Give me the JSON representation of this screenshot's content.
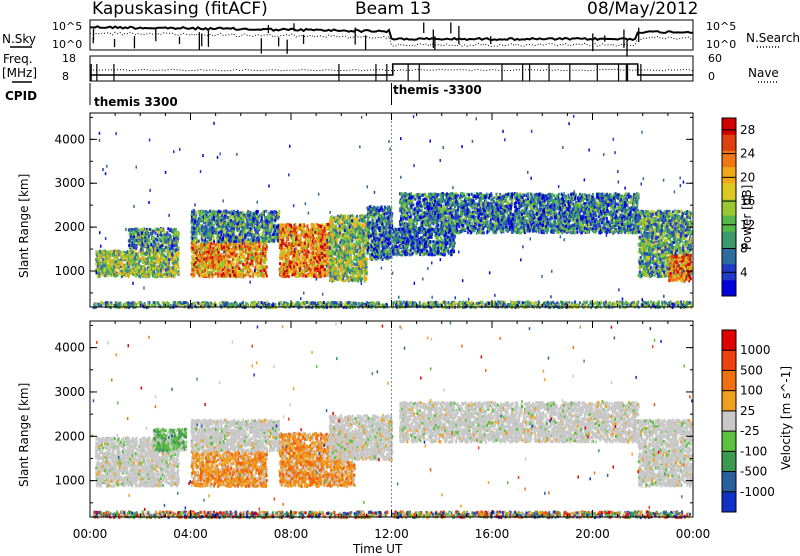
{
  "header": {
    "station": "Kapuskasing (fitACF)",
    "beam": "Beam 13",
    "date": "08/May/2012"
  },
  "summary": {
    "nsky_label": "N.Sky",
    "nsearch_label": "N.Search",
    "freq_label": "Freq.",
    "freq_unit": "[MHz]",
    "nave_label": "Nave",
    "cpid_label": "CPID",
    "nsky_ticks": [
      "10^5",
      "10^0"
    ],
    "nsearch_ticks": [
      "10^5",
      "10^0"
    ],
    "freq_ticks": [
      "18",
      "8"
    ],
    "nave_ticks": [
      "60",
      "0"
    ],
    "cpid_segments": [
      {
        "label": "themis 3300",
        "start_hour": 0
      },
      {
        "label": "themis -3300",
        "start_hour": 12
      }
    ]
  },
  "chart_data": [
    {
      "type": "heatmap",
      "title": "",
      "xlabel": "Time UT",
      "ylabel": "Slant Range [km]",
      "x_ticks": [
        "00:00",
        "04:00",
        "08:00",
        "12:00",
        "16:00",
        "20:00",
        "00:00"
      ],
      "xlim_hours": [
        0,
        24
      ],
      "y_ticks": [
        "1000",
        "2000",
        "3000",
        "4000"
      ],
      "ylim_km": [
        180,
        4600
      ],
      "colorbar": {
        "label": "Power [dB]",
        "ticks": [
          "4",
          "8",
          "12",
          "16",
          "20",
          "24",
          "28"
        ],
        "range": [
          0,
          30
        ],
        "colors": [
          "#0000dd",
          "#1f3bc8",
          "#2e6b9e",
          "#3d9a6a",
          "#55b84a",
          "#9ac832",
          "#dcc81e",
          "#f0a81a",
          "#f07814",
          "#e04010",
          "#d00000"
        ]
      },
      "regions": [
        {
          "t0": 0.1,
          "t1": 11.8,
          "r0": 200,
          "r1": 320,
          "level": 0.35
        },
        {
          "t0": 0.2,
          "t1": 3.5,
          "r0": 900,
          "r1": 1500,
          "level": 0.45
        },
        {
          "t0": 1.5,
          "t1": 3.5,
          "r0": 1500,
          "r1": 2000,
          "level": 0.3
        },
        {
          "t0": 4.0,
          "t1": 7.0,
          "r0": 900,
          "r1": 1700,
          "level": 0.7
        },
        {
          "t0": 4.0,
          "t1": 7.5,
          "r0": 1700,
          "r1": 2400,
          "level": 0.3
        },
        {
          "t0": 7.5,
          "t1": 9.5,
          "r0": 900,
          "r1": 2100,
          "level": 0.75
        },
        {
          "t0": 9.5,
          "t1": 11.0,
          "r0": 800,
          "r1": 2300,
          "level": 0.45
        },
        {
          "t0": 11.0,
          "t1": 12.0,
          "r0": 1300,
          "r1": 2500,
          "level": 0.25
        },
        {
          "t0": 12.3,
          "t1": 21.8,
          "r0": 1900,
          "r1": 2800,
          "level": 0.25
        },
        {
          "t0": 12.0,
          "t1": 14.5,
          "r0": 1400,
          "r1": 2000,
          "level": 0.2
        },
        {
          "t0": 21.8,
          "t1": 23.9,
          "r0": 900,
          "r1": 2400,
          "level": 0.35
        },
        {
          "t0": 23.0,
          "t1": 23.9,
          "r0": 800,
          "r1": 1400,
          "level": 0.8
        },
        {
          "t0": 12.0,
          "t1": 23.9,
          "r0": 200,
          "r1": 330,
          "level": 0.35
        }
      ]
    },
    {
      "type": "heatmap",
      "title": "",
      "xlabel": "Time UT",
      "ylabel": "Slant Range [km]",
      "x_ticks": [
        "00:00",
        "04:00",
        "08:00",
        "12:00",
        "16:00",
        "20:00",
        "00:00"
      ],
      "xlim_hours": [
        0,
        24
      ],
      "y_ticks": [
        "1000",
        "2000",
        "3000",
        "4000"
      ],
      "ylim_km": [
        180,
        4600
      ],
      "colorbar": {
        "label": "Velocity [m s^-1]",
        "ticks": [
          "1000",
          "500",
          "100",
          "25",
          "-25",
          "-100",
          "-500",
          "-1000"
        ],
        "colors": [
          "#1030c8",
          "#2a60a0",
          "#3a9a50",
          "#5cc040",
          "#c8c8c8",
          "#f0a020",
          "#f07010",
          "#f04010",
          "#e00000"
        ]
      },
      "regions": [
        {
          "t0": 0.1,
          "t1": 11.8,
          "r0": 200,
          "r1": 330,
          "kind": "mixed"
        },
        {
          "t0": 0.2,
          "t1": 3.5,
          "r0": 900,
          "r1": 2000,
          "kind": "gray"
        },
        {
          "t0": 2.5,
          "t1": 3.8,
          "r0": 1700,
          "r1": 2200,
          "kind": "green"
        },
        {
          "t0": 4.0,
          "t1": 7.0,
          "r0": 900,
          "r1": 1700,
          "kind": "orange"
        },
        {
          "t0": 4.0,
          "t1": 7.5,
          "r0": 1700,
          "r1": 2400,
          "kind": "gray"
        },
        {
          "t0": 7.5,
          "t1": 10.5,
          "r0": 900,
          "r1": 2100,
          "kind": "orange"
        },
        {
          "t0": 9.5,
          "t1": 12.0,
          "r0": 1500,
          "r1": 2500,
          "kind": "gray"
        },
        {
          "t0": 12.3,
          "t1": 21.8,
          "r0": 1900,
          "r1": 2800,
          "kind": "gray"
        },
        {
          "t0": 21.8,
          "t1": 23.9,
          "r0": 900,
          "r1": 2400,
          "kind": "gray"
        },
        {
          "t0": 12.0,
          "t1": 23.9,
          "r0": 200,
          "r1": 330,
          "kind": "mixed"
        }
      ]
    }
  ]
}
